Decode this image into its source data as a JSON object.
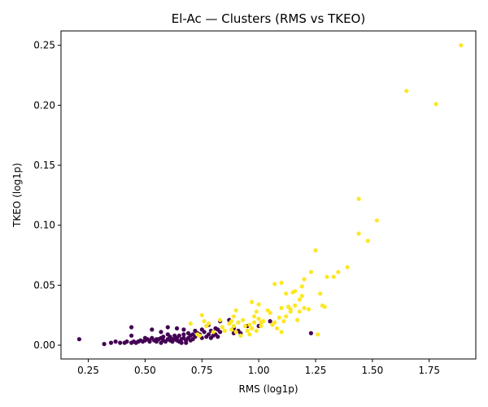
{
  "chart_data": {
    "type": "scatter",
    "title": "El-Ac — Clusters (RMS vs TKEO)",
    "xlabel": "RMS (log1p)",
    "ylabel": "TKEO (log1p)",
    "xlim": [
      0.13,
      1.955
    ],
    "ylim": [
      -0.0115,
      0.262
    ],
    "xticks": [
      0.25,
      0.5,
      0.75,
      1.0,
      1.25,
      1.5,
      1.75
    ],
    "xtick_labels": [
      "0.25",
      "0.50",
      "0.75",
      "1.00",
      "1.25",
      "1.50",
      "1.75"
    ],
    "yticks": [
      0.0,
      0.05,
      0.1,
      0.15,
      0.2,
      0.25
    ],
    "ytick_labels": [
      "0.00",
      "0.05",
      "0.10",
      "0.15",
      "0.20",
      "0.25"
    ],
    "grid": false,
    "colors": {
      "cluster_0": "#440154",
      "cluster_1": "#fde725"
    },
    "series": [
      {
        "color": "#440154",
        "points": [
          [
            0.21,
            0.005
          ],
          [
            0.32,
            0.001
          ],
          [
            0.35,
            0.002
          ],
          [
            0.37,
            0.003
          ],
          [
            0.39,
            0.002
          ],
          [
            0.41,
            0.002
          ],
          [
            0.42,
            0.003
          ],
          [
            0.44,
            0.015
          ],
          [
            0.44,
            0.008
          ],
          [
            0.44,
            0.002
          ],
          [
            0.45,
            0.003
          ],
          [
            0.46,
            0.002
          ],
          [
            0.47,
            0.003
          ],
          [
            0.48,
            0.004
          ],
          [
            0.49,
            0.003
          ],
          [
            0.5,
            0.006
          ],
          [
            0.5,
            0.004
          ],
          [
            0.51,
            0.005
          ],
          [
            0.52,
            0.004
          ],
          [
            0.52,
            0.003
          ],
          [
            0.53,
            0.013
          ],
          [
            0.53,
            0.006
          ],
          [
            0.54,
            0.004
          ],
          [
            0.55,
            0.005
          ],
          [
            0.55,
            0.003
          ],
          [
            0.56,
            0.005
          ],
          [
            0.57,
            0.011
          ],
          [
            0.57,
            0.006
          ],
          [
            0.57,
            0.002
          ],
          [
            0.58,
            0.007
          ],
          [
            0.58,
            0.004
          ],
          [
            0.59,
            0.003
          ],
          [
            0.6,
            0.015
          ],
          [
            0.6,
            0.009
          ],
          [
            0.6,
            0.005
          ],
          [
            0.61,
            0.004
          ],
          [
            0.61,
            0.007
          ],
          [
            0.62,
            0.005
          ],
          [
            0.62,
            0.003
          ],
          [
            0.63,
            0.008
          ],
          [
            0.63,
            0.005
          ],
          [
            0.64,
            0.014
          ],
          [
            0.64,
            0.006
          ],
          [
            0.64,
            0.004
          ],
          [
            0.65,
            0.003
          ],
          [
            0.65,
            0.008
          ],
          [
            0.66,
            0.005
          ],
          [
            0.66,
            0.002
          ],
          [
            0.67,
            0.013
          ],
          [
            0.67,
            0.009
          ],
          [
            0.67,
            0.006
          ],
          [
            0.68,
            0.004
          ],
          [
            0.68,
            0.002
          ],
          [
            0.69,
            0.01
          ],
          [
            0.69,
            0.006
          ],
          [
            0.7,
            0.008
          ],
          [
            0.7,
            0.004
          ],
          [
            0.71,
            0.009
          ],
          [
            0.71,
            0.005
          ],
          [
            0.72,
            0.012
          ],
          [
            0.72,
            0.007
          ],
          [
            0.73,
            0.01
          ],
          [
            0.74,
            0.009
          ],
          [
            0.75,
            0.013
          ],
          [
            0.75,
            0.006
          ],
          [
            0.76,
            0.011
          ],
          [
            0.77,
            0.007
          ],
          [
            0.78,
            0.017
          ],
          [
            0.78,
            0.009
          ],
          [
            0.79,
            0.006
          ],
          [
            0.79,
            0.012
          ],
          [
            0.8,
            0.008
          ],
          [
            0.81,
            0.014
          ],
          [
            0.81,
            0.009
          ],
          [
            0.82,
            0.013
          ],
          [
            0.82,
            0.007
          ],
          [
            0.83,
            0.02
          ],
          [
            0.83,
            0.011
          ],
          [
            0.87,
            0.021
          ],
          [
            0.89,
            0.014
          ],
          [
            0.89,
            0.01
          ],
          [
            0.91,
            0.012
          ],
          [
            0.92,
            0.01
          ],
          [
            0.95,
            0.016
          ],
          [
            1.0,
            0.016
          ],
          [
            1.05,
            0.02
          ],
          [
            1.23,
            0.01
          ]
        ]
      },
      {
        "color": "#fde725",
        "points": [
          [
            0.7,
            0.018
          ],
          [
            0.73,
            0.009
          ],
          [
            0.74,
            0.008
          ],
          [
            0.75,
            0.025
          ],
          [
            0.76,
            0.02
          ],
          [
            0.77,
            0.016
          ],
          [
            0.78,
            0.018
          ],
          [
            0.8,
            0.011
          ],
          [
            0.83,
            0.021
          ],
          [
            0.84,
            0.015
          ],
          [
            0.85,
            0.012
          ],
          [
            0.87,
            0.018
          ],
          [
            0.88,
            0.013
          ],
          [
            0.88,
            0.02
          ],
          [
            0.89,
            0.024
          ],
          [
            0.89,
            0.016
          ],
          [
            0.9,
            0.029
          ],
          [
            0.9,
            0.011
          ],
          [
            0.91,
            0.019
          ],
          [
            0.92,
            0.008
          ],
          [
            0.93,
            0.021
          ],
          [
            0.94,
            0.016
          ],
          [
            0.95,
            0.012
          ],
          [
            0.96,
            0.009
          ],
          [
            0.96,
            0.017
          ],
          [
            0.97,
            0.036
          ],
          [
            0.97,
            0.014
          ],
          [
            0.98,
            0.019
          ],
          [
            0.98,
            0.024
          ],
          [
            0.99,
            0.028
          ],
          [
            0.99,
            0.012
          ],
          [
            1.0,
            0.034
          ],
          [
            1.0,
            0.022
          ],
          [
            1.01,
            0.016
          ],
          [
            1.01,
            0.019
          ],
          [
            1.02,
            0.02
          ],
          [
            1.04,
            0.029
          ],
          [
            1.05,
            0.027
          ],
          [
            1.06,
            0.017
          ],
          [
            1.07,
            0.051
          ],
          [
            1.07,
            0.019
          ],
          [
            1.08,
            0.014
          ],
          [
            1.09,
            0.023
          ],
          [
            1.1,
            0.052
          ],
          [
            1.1,
            0.031
          ],
          [
            1.1,
            0.011
          ],
          [
            1.11,
            0.02
          ],
          [
            1.12,
            0.024
          ],
          [
            1.12,
            0.043
          ],
          [
            1.13,
            0.032
          ],
          [
            1.14,
            0.028
          ],
          [
            1.14,
            0.03
          ],
          [
            1.15,
            0.044
          ],
          [
            1.16,
            0.045
          ],
          [
            1.16,
            0.033
          ],
          [
            1.17,
            0.021
          ],
          [
            1.18,
            0.028
          ],
          [
            1.18,
            0.038
          ],
          [
            1.19,
            0.041
          ],
          [
            1.19,
            0.049
          ],
          [
            1.2,
            0.031
          ],
          [
            1.2,
            0.055
          ],
          [
            1.22,
            0.03
          ],
          [
            1.23,
            0.061
          ],
          [
            1.25,
            0.079
          ],
          [
            1.26,
            0.009
          ],
          [
            1.27,
            0.043
          ],
          [
            1.28,
            0.033
          ],
          [
            1.29,
            0.032
          ],
          [
            1.3,
            0.057
          ],
          [
            1.33,
            0.057
          ],
          [
            1.35,
            0.061
          ],
          [
            1.39,
            0.065
          ],
          [
            1.44,
            0.122
          ],
          [
            1.44,
            0.093
          ],
          [
            1.48,
            0.087
          ],
          [
            1.52,
            0.104
          ],
          [
            1.65,
            0.212
          ],
          [
            1.78,
            0.201
          ],
          [
            1.89,
            0.25
          ]
        ]
      }
    ]
  }
}
